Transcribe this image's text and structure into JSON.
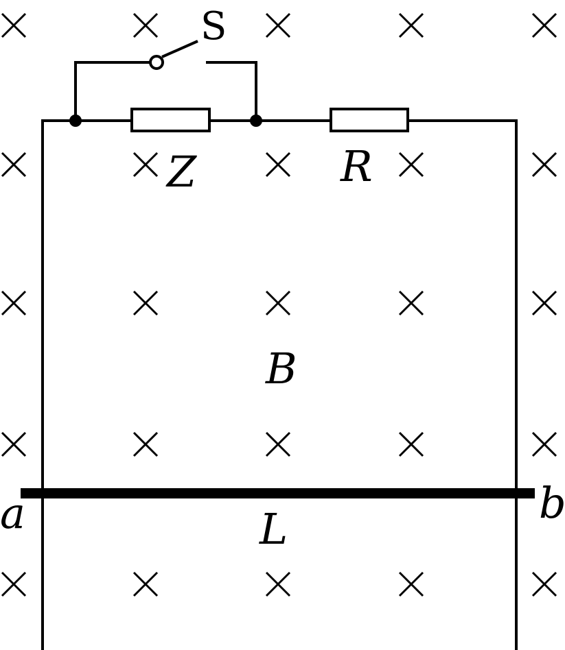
{
  "diagram": {
    "switch_label": "S",
    "component_labels": {
      "z": "Z",
      "r": "R"
    },
    "field_label": "B",
    "rod_label": "L",
    "end_labels": {
      "a": "a",
      "b": "b"
    },
    "field_symbol": "cross-into-page"
  }
}
